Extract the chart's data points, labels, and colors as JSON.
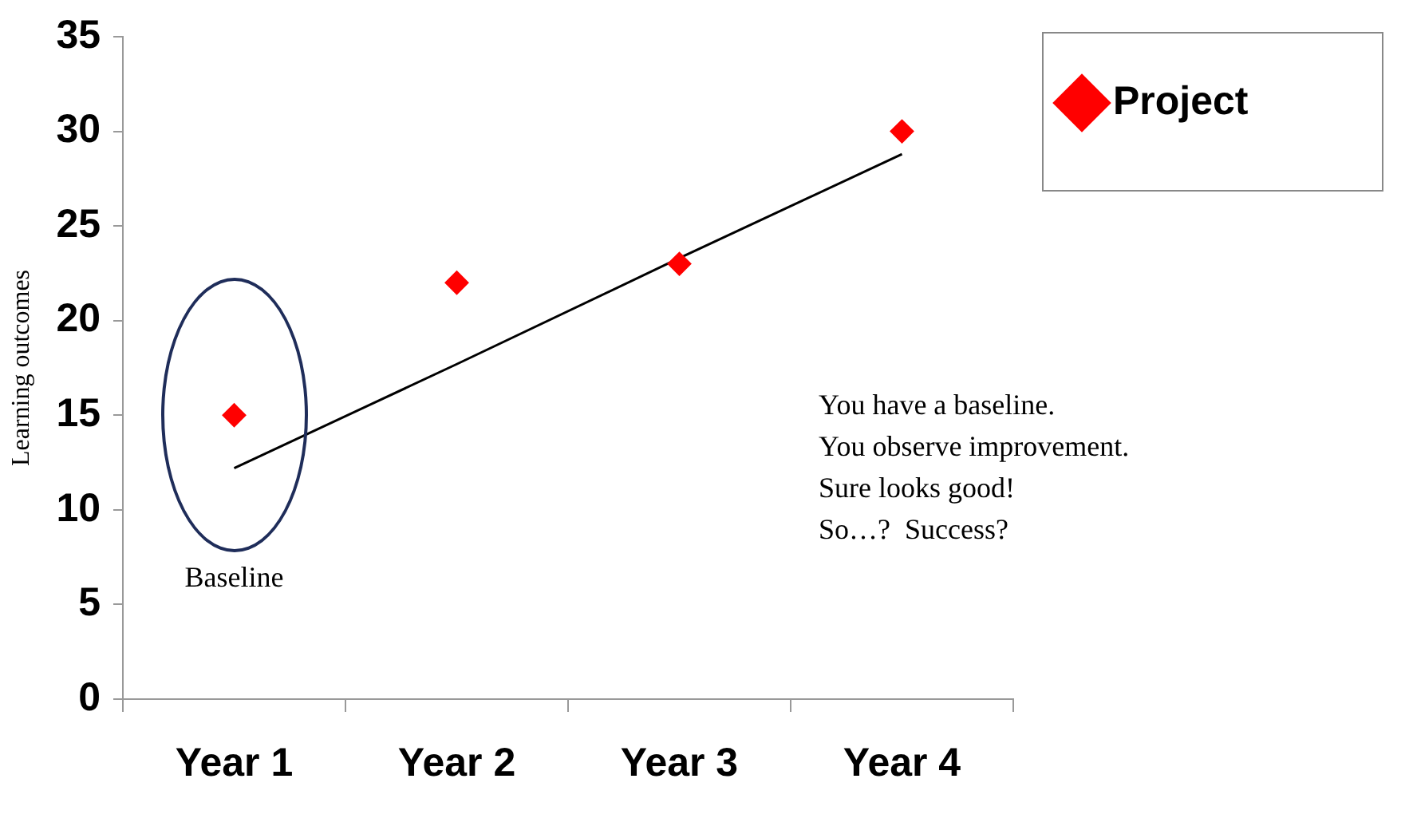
{
  "chart_data": {
    "type": "scatter",
    "ylabel": "Learning outcomes",
    "categories": [
      "Year 1",
      "Year 2",
      "Year 3",
      "Year 4"
    ],
    "series": [
      {
        "name": "Project",
        "color": "#ff0000",
        "values": [
          15,
          22,
          23,
          30
        ],
        "marker": "diamond"
      },
      {
        "type": "line",
        "color": "#000000",
        "values": [
          12.2,
          17.7,
          23.3,
          28.8
        ],
        "marker": "none"
      }
    ],
    "ylim": [
      0,
      35
    ],
    "yticks": [
      0,
      5,
      10,
      15,
      20,
      25,
      30,
      35
    ],
    "grid": false,
    "legend": "top right",
    "annotations": [
      "Baseline",
      "You have a baseline.",
      "You observe improvement.",
      "Sure looks good!",
      "So…?  Success?"
    ]
  }
}
